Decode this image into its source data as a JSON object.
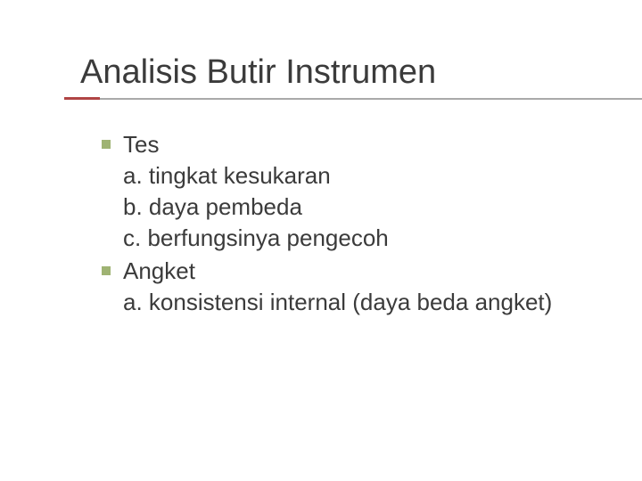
{
  "slide": {
    "title": "Analisis Butir Instrumen",
    "title_color": "#3b3b3b",
    "title_fontsize": 38,
    "underline_gray_color": "#a9a9a9",
    "underline_accent_color": "#b04545",
    "bullet_color": "#9fb373",
    "body_color": "#3b3b3b",
    "body_fontsize": 26,
    "background_color": "#ffffff",
    "items": [
      {
        "label": "Tes",
        "subs": [
          "a. tingkat kesukaran",
          "b. daya pembeda",
          "c. berfungsinya pengecoh"
        ]
      },
      {
        "label": "Angket",
        "subs": [
          "a. konsistensi internal (daya beda angket)"
        ]
      }
    ]
  }
}
